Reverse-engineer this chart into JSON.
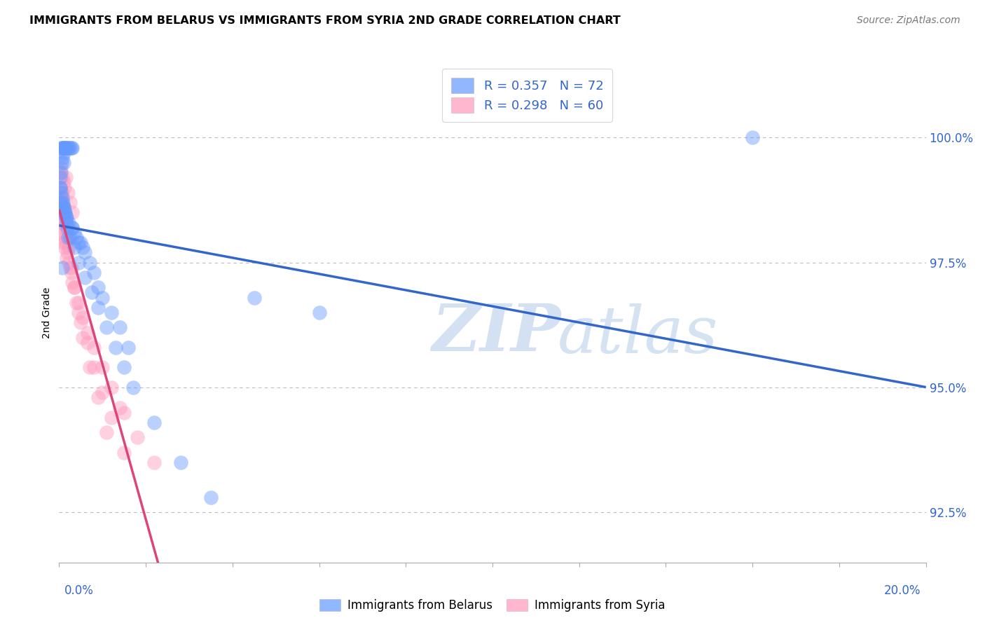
{
  "title": "IMMIGRANTS FROM BELARUS VS IMMIGRANTS FROM SYRIA 2ND GRADE CORRELATION CHART",
  "source": "Source: ZipAtlas.com",
  "ylabel": "2nd Grade",
  "ylabel_right_labels": [
    "100.0%",
    "97.5%",
    "95.0%",
    "92.5%"
  ],
  "ylabel_right_values": [
    100.0,
    97.5,
    95.0,
    92.5
  ],
  "xlim": [
    0.0,
    20.0
  ],
  "ylim": [
    91.5,
    101.5
  ],
  "belarus_color": "#6699ff",
  "syria_color": "#ff99bb",
  "belarus_R": 0.357,
  "belarus_N": 72,
  "syria_R": 0.298,
  "syria_N": 60,
  "legend_text_color": "#3366cc",
  "watermark_zip": "ZIP",
  "watermark_atlas": "atlas",
  "belarus_x": [
    0.05,
    0.08,
    0.1,
    0.12,
    0.1,
    0.08,
    0.06,
    0.12,
    0.1,
    0.08,
    0.15,
    0.18,
    0.2,
    0.22,
    0.25,
    0.28,
    0.3,
    0.1,
    0.05,
    0.03,
    0.04,
    0.06,
    0.08,
    0.1,
    0.12,
    0.14,
    0.16,
    0.18,
    0.22,
    0.3,
    0.35,
    0.4,
    0.45,
    0.5,
    0.55,
    0.6,
    0.7,
    0.8,
    0.9,
    1.0,
    1.2,
    1.4,
    1.6,
    0.02,
    0.03,
    0.05,
    0.07,
    0.09,
    0.11,
    0.13,
    0.15,
    0.17,
    0.19,
    0.25,
    0.35,
    0.45,
    0.6,
    0.75,
    0.9,
    1.1,
    1.3,
    1.5,
    1.7,
    2.2,
    2.8,
    3.5,
    4.5,
    6.0,
    0.08,
    0.2,
    0.3,
    16.0
  ],
  "belarus_y": [
    99.8,
    99.8,
    99.8,
    99.8,
    99.7,
    99.6,
    99.5,
    99.8,
    99.8,
    99.8,
    99.8,
    99.8,
    99.8,
    99.8,
    99.8,
    99.8,
    99.8,
    99.5,
    99.3,
    99.0,
    98.7,
    98.7,
    98.6,
    98.6,
    98.5,
    98.5,
    98.4,
    98.4,
    98.3,
    98.2,
    98.1,
    98.0,
    97.9,
    97.9,
    97.8,
    97.7,
    97.5,
    97.3,
    97.0,
    96.8,
    96.5,
    96.2,
    95.8,
    99.2,
    99.0,
    98.9,
    98.8,
    98.7,
    98.6,
    98.5,
    98.4,
    98.3,
    98.2,
    98.0,
    97.8,
    97.5,
    97.2,
    96.9,
    96.6,
    96.2,
    95.8,
    95.4,
    95.0,
    94.3,
    93.5,
    92.8,
    96.8,
    96.5,
    97.4,
    98.0,
    98.2,
    100.0
  ],
  "syria_x": [
    0.03,
    0.05,
    0.07,
    0.1,
    0.12,
    0.08,
    0.06,
    0.15,
    0.2,
    0.25,
    0.3,
    0.1,
    0.05,
    0.03,
    0.08,
    0.12,
    0.18,
    0.22,
    0.28,
    0.35,
    0.45,
    0.55,
    0.65,
    0.8,
    1.0,
    1.2,
    1.5,
    1.8,
    2.2,
    0.02,
    0.04,
    0.06,
    0.09,
    0.11,
    0.14,
    0.16,
    0.19,
    0.25,
    0.3,
    0.4,
    0.5,
    0.65,
    0.8,
    1.0,
    1.2,
    1.5,
    0.08,
    0.1,
    0.12,
    0.15,
    0.18,
    0.22,
    0.28,
    0.35,
    0.45,
    0.55,
    0.7,
    0.9,
    1.1,
    1.4
  ],
  "syria_y": [
    99.3,
    99.4,
    99.2,
    99.1,
    99.0,
    98.9,
    98.8,
    99.2,
    98.9,
    98.7,
    98.5,
    98.6,
    98.3,
    98.1,
    97.9,
    97.8,
    97.6,
    97.5,
    97.3,
    97.0,
    96.7,
    96.4,
    96.1,
    95.8,
    95.4,
    95.0,
    94.5,
    94.0,
    93.5,
    98.8,
    98.7,
    98.5,
    98.3,
    98.2,
    98.0,
    97.9,
    97.7,
    97.4,
    97.1,
    96.7,
    96.3,
    95.9,
    95.4,
    94.9,
    94.4,
    93.7,
    98.7,
    98.6,
    98.5,
    98.3,
    98.1,
    97.8,
    97.4,
    97.0,
    96.5,
    96.0,
    95.4,
    94.8,
    94.1,
    94.6
  ]
}
